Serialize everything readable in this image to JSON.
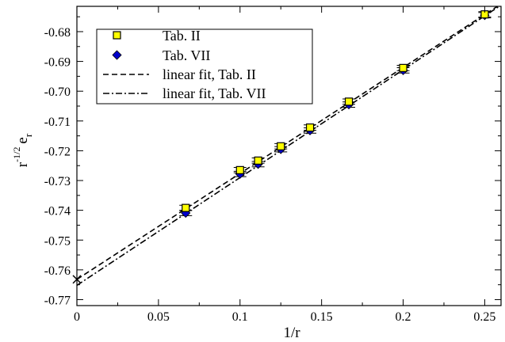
{
  "chart_data": {
    "type": "scatter",
    "xlabel": "1/r",
    "ylabel_main": "r",
    "ylabel_sup": "-1/2",
    "ylabel_e": "e",
    "ylabel_sub": "r",
    "xlim": [
      0,
      0.26
    ],
    "ylim": [
      -0.772,
      -0.6715
    ],
    "x_ticks": [
      0,
      0.05,
      0.1,
      0.15,
      0.2,
      0.25
    ],
    "x_tick_labels": [
      "0",
      "0.05",
      "0.1",
      "0.15",
      "0.2",
      "0.25"
    ],
    "y_ticks": [
      -0.77,
      -0.76,
      -0.75,
      -0.74,
      -0.73,
      -0.72,
      -0.71,
      -0.7,
      -0.69,
      -0.68
    ],
    "y_tick_labels": [
      "-0.77",
      "-0.76",
      "-0.75",
      "-0.74",
      "-0.73",
      "-0.72",
      "-0.71",
      "-0.70",
      "-0.69",
      "-0.68"
    ],
    "grid": false,
    "legend_position": "top-left",
    "series": [
      {
        "name": "Tab. II",
        "marker": "square",
        "color": "#ffff00",
        "x": [
          0.0667,
          0.1,
          0.1111,
          0.125,
          0.1429,
          0.1667,
          0.2,
          0.25
        ],
        "y": [
          -0.7392,
          -0.7265,
          -0.7233,
          -0.7185,
          -0.7122,
          -0.7035,
          -0.6922,
          -0.6742
        ],
        "yerr": [
          0.0009,
          0.0009,
          0.0009,
          0.0009,
          0.0009,
          0.0009,
          0.0009,
          0.0009
        ]
      },
      {
        "name": "Tab. VII",
        "marker": "diamond",
        "color": "#0000cc",
        "x": [
          0.0667,
          0.1,
          0.1111,
          0.125,
          0.1429,
          0.1667,
          0.2,
          0.25
        ],
        "y": [
          -0.7409,
          -0.7278,
          -0.7245,
          -0.7195,
          -0.7132,
          -0.7045,
          -0.693,
          -0.6745
        ],
        "yerr": [
          0.0009,
          0.0009,
          0.0009,
          0.0009,
          0.0009,
          0.0009,
          0.0009,
          0.0009
        ]
      },
      {
        "name": "linear fit, Tab. II",
        "style": "dashed",
        "x": [
          0,
          0.26
        ],
        "y": [
          -0.7632,
          -0.6707
        ]
      },
      {
        "name": "linear fit, Tab. VII",
        "style": "dashdot",
        "x": [
          0,
          0.26
        ],
        "y": [
          -0.7652,
          -0.6711
        ]
      }
    ],
    "annotations": [
      {
        "type": "cross",
        "x": 0,
        "y": -0.7632
      }
    ]
  }
}
